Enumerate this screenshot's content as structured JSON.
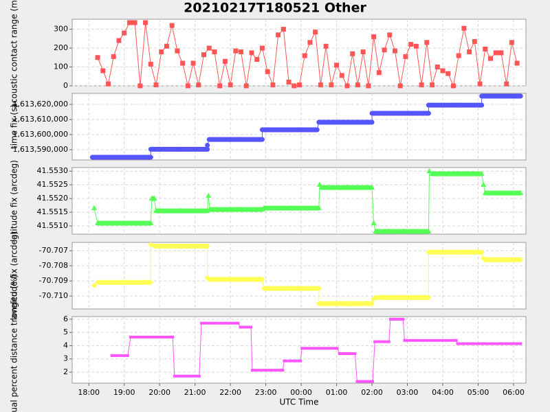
{
  "title": "20210217T180521 Other",
  "chart_data": [
    {
      "type": "scatter-line",
      "y_label": "acoustic contact range (m)",
      "color": "#ff5555",
      "marker": "square",
      "grid": true,
      "xlim": [
        -0.47,
        12.35
      ],
      "ylim": [
        0,
        353
      ],
      "yticks": [
        0,
        100,
        200,
        300
      ],
      "x": [
        0.25,
        0.4,
        0.55,
        0.7,
        0.85,
        1,
        1.15,
        1.3,
        1.45,
        1.6,
        1.75,
        1.9,
        2.05,
        2.2,
        2.35,
        2.5,
        2.65,
        2.8,
        2.95,
        3.1,
        3.25,
        3.4,
        3.55,
        3.7,
        3.85,
        4,
        4.15,
        4.3,
        4.45,
        4.6,
        4.75,
        4.9,
        5.05,
        5.2,
        5.35,
        5.5,
        5.65,
        5.8,
        5.95,
        6.1,
        6.25,
        6.4,
        6.55,
        6.7,
        6.85,
        7,
        7.15,
        7.3,
        7.45,
        7.6,
        7.75,
        7.9,
        8.05,
        8.2,
        8.35,
        8.5,
        8.65,
        8.8,
        8.95,
        9.1,
        9.25,
        9.4,
        9.55,
        9.7,
        9.85,
        10,
        10.15,
        10.3,
        10.45,
        10.6,
        10.75,
        10.9,
        11.05,
        11.2,
        11.35,
        11.5,
        11.65,
        11.8,
        11.95,
        12.1
      ],
      "values": [
        150,
        80,
        10,
        155,
        240,
        280,
        335,
        335,
        0,
        335,
        115,
        5,
        180,
        210,
        320,
        185,
        120,
        0,
        120,
        5,
        165,
        200,
        180,
        0,
        130,
        5,
        185,
        180,
        0,
        175,
        140,
        200,
        75,
        5,
        270,
        300,
        20,
        0,
        5,
        160,
        230,
        285,
        5,
        210,
        5,
        110,
        55,
        0,
        170,
        5,
        180,
        0,
        260,
        70,
        190,
        270,
        185,
        0,
        155,
        220,
        210,
        5,
        230,
        5,
        100,
        80,
        65,
        0,
        160,
        305,
        180,
        235,
        10,
        195,
        145,
        175,
        175,
        10,
        230,
        120
      ]
    },
    {
      "type": "scatter-line",
      "y_label": "time fix (s)",
      "color": "#5555ff",
      "marker": "circle",
      "grid": true,
      "xlim": [
        -0.47,
        12.35
      ],
      "ylim": [
        1613583200,
        1613627300
      ],
      "yticks": [
        {
          "value": 1613590000,
          "label": "1,613,590,000"
        },
        {
          "value": 1613600000,
          "label": "1,613,600,000"
        },
        {
          "value": 1613610000,
          "label": "1,613,610,000"
        },
        {
          "value": 1613620000,
          "label": "1,613,620,000"
        }
      ],
      "x": [
        0.1,
        0.9,
        1.75,
        1.75,
        2.6,
        3.35,
        3.35,
        3.4,
        4.2,
        4.9,
        4.9,
        5.7,
        6.45,
        6.5,
        7.3,
        8.0,
        8.0,
        8.8,
        9.6,
        9.6,
        10.4,
        11.1,
        11.1,
        11.7,
        12.2
      ],
      "values": [
        1613585000,
        1613585000,
        1613585000,
        1613590300,
        1613590300,
        1613590300,
        1613593000,
        1613596800,
        1613596800,
        1613596800,
        1613603200,
        1613603200,
        1613603200,
        1613608200,
        1613608200,
        1613608200,
        1613614100,
        1613614100,
        1613614100,
        1613619500,
        1613619500,
        1613619500,
        1613625500,
        1613625500,
        1613625500
      ]
    },
    {
      "type": "scatter-line",
      "y_label": "latitude fix (arcdeg)",
      "color": "#55ff55",
      "marker": "triangle",
      "grid": true,
      "xlim": [
        -0.47,
        12.35
      ],
      "ylim": [
        41.5507,
        41.55313
      ],
      "yticks": [
        {
          "value": 41.551,
          "label": "41.5510"
        },
        {
          "value": 41.5515,
          "label": "41.5515"
        },
        {
          "value": 41.552,
          "label": "41.5520"
        },
        {
          "value": 41.5525,
          "label": "41.5525"
        },
        {
          "value": 41.553,
          "label": "41.5530"
        }
      ],
      "x": [
        0.15,
        0.25,
        1.0,
        1.75,
        1.78,
        1.85,
        1.9,
        2.6,
        3.35,
        3.38,
        3.42,
        4.2,
        4.9,
        4.95,
        5.7,
        6.5,
        6.52,
        6.58,
        7.3,
        8.0,
        8.05,
        8.1,
        8.9,
        9.6,
        9.62,
        9.7,
        10.4,
        11.1,
        11.15,
        11.2,
        11.7,
        12.2
      ],
      "values": [
        41.55165,
        41.5511,
        41.5511,
        41.5511,
        41.552,
        41.552,
        41.55155,
        41.55155,
        41.55155,
        41.5521,
        41.5516,
        41.5516,
        41.5516,
        41.55165,
        41.55165,
        41.55165,
        41.5525,
        41.5524,
        41.5524,
        41.5524,
        41.5511,
        41.5508,
        41.5508,
        41.5508,
        41.553,
        41.5529,
        41.5529,
        41.5529,
        41.5525,
        41.5522,
        41.5522,
        41.5522
      ]
    },
    {
      "type": "scatter-line",
      "y_label": "longitude fix (arcdeg)",
      "color": "#ffff55",
      "marker": "diamond",
      "grid": true,
      "xlim": [
        -0.47,
        12.35
      ],
      "ylim": [
        -70.71086,
        -70.70645
      ],
      "yticks": [
        {
          "value": -70.71,
          "label": "-70.710"
        },
        -70.709,
        -70.708,
        -70.707
      ],
      "x": [
        0.15,
        0.25,
        1.0,
        1.75,
        1.75,
        1.85,
        2.6,
        3.35,
        3.35,
        3.4,
        4.2,
        4.9,
        4.95,
        5.7,
        6.5,
        6.5,
        7.3,
        8.0,
        8.05,
        8.1,
        8.9,
        9.6,
        9.6,
        10.4,
        11.1,
        11.15,
        11.2,
        11.7,
        12.2
      ],
      "values": [
        -70.7093,
        -70.7091,
        -70.7091,
        -70.7091,
        -70.7066,
        -70.7067,
        -70.7067,
        -70.7067,
        -70.7088,
        -70.7089,
        -70.7089,
        -70.7089,
        -70.7095,
        -70.7095,
        -70.7095,
        -70.7105,
        -70.7105,
        -70.7105,
        -70.7102,
        -70.7101,
        -70.7101,
        -70.7101,
        -70.7071,
        -70.7071,
        -70.7071,
        -70.7075,
        -70.7076,
        -70.7076,
        -70.7076
      ]
    },
    {
      "type": "scatter-line",
      "y_label": "actual percent distance traveled (%)",
      "color": "#ff55ff",
      "marker": "small-square",
      "grid": true,
      "x_label": "UTC Time",
      "xlim": [
        -0.47,
        12.35
      ],
      "ylim": [
        1.17,
        6.2
      ],
      "yticks": [
        2,
        3,
        4,
        5,
        6
      ],
      "xticks": [
        {
          "value": 0,
          "label": "18:00"
        },
        {
          "value": 1,
          "label": "19:00"
        },
        {
          "value": 2,
          "label": "20:00"
        },
        {
          "value": 3,
          "label": "21:00"
        },
        {
          "value": 4,
          "label": "22:00"
        },
        {
          "value": 5,
          "label": "23:00"
        },
        {
          "value": 6,
          "label": "00:00"
        },
        {
          "value": 7,
          "label": "01:00"
        },
        {
          "value": 8,
          "label": "02:00"
        },
        {
          "value": 9,
          "label": "03:00"
        },
        {
          "value": 10,
          "label": "04:00"
        },
        {
          "value": 11,
          "label": "05:00"
        },
        {
          "value": 12,
          "label": "06:00"
        }
      ],
      "x": [
        0.65,
        1.1,
        1.18,
        2.37,
        2.42,
        3.12,
        3.18,
        4.22,
        4.28,
        4.58,
        4.62,
        5.48,
        5.52,
        5.98,
        6.02,
        7.02,
        7.08,
        7.52,
        7.58,
        8.02,
        8.08,
        8.48,
        8.52,
        8.88,
        8.92,
        10.38,
        10.42,
        12.2
      ],
      "values": [
        3.25,
        3.25,
        4.65,
        4.65,
        1.7,
        1.7,
        5.7,
        5.7,
        5.4,
        5.4,
        2.15,
        2.15,
        2.85,
        2.85,
        3.8,
        3.8,
        3.4,
        3.4,
        1.3,
        1.3,
        4.3,
        4.3,
        6.0,
        6.0,
        4.4,
        4.4,
        4.15,
        4.15
      ]
    }
  ]
}
